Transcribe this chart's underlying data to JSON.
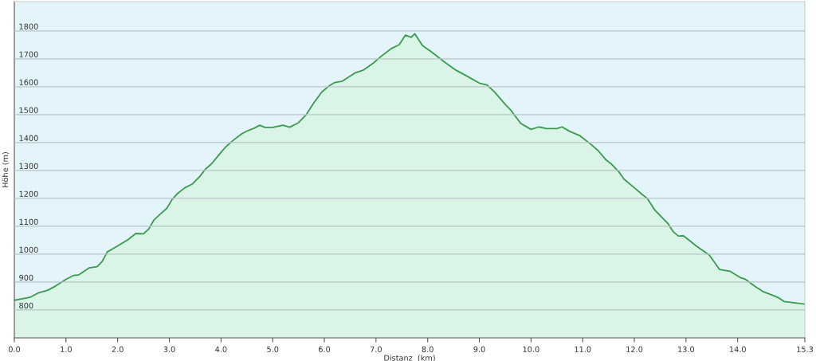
{
  "chart_data": {
    "type": "area",
    "xlabel": "Distanz  (km)",
    "ylabel": "Höhe (m)",
    "xlim": [
      0,
      15.3
    ],
    "ylim": [
      700,
      1905
    ],
    "xticks": [
      {
        "value": 0,
        "label": "0.0"
      },
      {
        "value": 1,
        "label": "1.0"
      },
      {
        "value": 2,
        "label": "2.0"
      },
      {
        "value": 3,
        "label": "3.0"
      },
      {
        "value": 4,
        "label": "4.0"
      },
      {
        "value": 5,
        "label": "5.0"
      },
      {
        "value": 6,
        "label": "6.0"
      },
      {
        "value": 7,
        "label": "7.0"
      },
      {
        "value": 8,
        "label": "8.0"
      },
      {
        "value": 9,
        "label": "9.0"
      },
      {
        "value": 10,
        "label": "10.0"
      },
      {
        "value": 11,
        "label": "11.0"
      },
      {
        "value": 12,
        "label": "12.0"
      },
      {
        "value": 13,
        "label": "13.0"
      },
      {
        "value": 14,
        "label": "14.0"
      },
      {
        "value": 15.3,
        "label": "15.3"
      }
    ],
    "yticks": [
      800,
      900,
      1000,
      1100,
      1200,
      1300,
      1400,
      1500,
      1600,
      1700,
      1800
    ],
    "grid": "y",
    "series": [
      {
        "color": "#3a9a4e",
        "x": [
          0,
          0.3,
          0.45,
          0.65,
          0.8,
          1.0,
          1.15,
          1.25,
          1.45,
          1.6,
          1.7,
          1.8,
          1.95,
          2.2,
          2.35,
          2.5,
          2.6,
          2.7,
          2.85,
          2.95,
          3.05,
          3.15,
          3.3,
          3.45,
          3.6,
          3.7,
          3.8,
          3.85,
          4.0,
          4.1,
          4.25,
          4.4,
          4.5,
          4.65,
          4.75,
          4.85,
          5.0,
          5.2,
          5.33,
          5.5,
          5.65,
          5.8,
          5.95,
          6.1,
          6.2,
          6.35,
          6.6,
          6.75,
          6.95,
          7.1,
          7.3,
          7.45,
          7.57,
          7.68,
          7.75,
          7.9,
          8.05,
          8.35,
          8.55,
          8.75,
          9.0,
          9.15,
          9.3,
          9.5,
          9.6,
          9.8,
          10.0,
          10.15,
          10.3,
          10.5,
          10.6,
          10.75,
          10.95,
          11.15,
          11.3,
          11.45,
          11.55,
          11.7,
          11.8,
          12.0,
          12.15,
          12.25,
          12.4,
          12.55,
          12.65,
          12.75,
          12.85,
          12.95,
          13.2,
          13.45,
          13.55,
          13.65,
          13.85,
          14.05,
          14.15,
          14.35,
          14.5,
          14.7,
          14.8,
          14.9,
          15.3
        ],
        "values": [
          835,
          845,
          860,
          871,
          886,
          910,
          924,
          926,
          951,
          955,
          974,
          1008,
          1024,
          1052,
          1074,
          1073,
          1090,
          1122,
          1148,
          1164,
          1195,
          1216,
          1238,
          1252,
          1281,
          1305,
          1321,
          1331,
          1365,
          1386,
          1410,
          1431,
          1441,
          1452,
          1462,
          1454,
          1454,
          1462,
          1455,
          1471,
          1500,
          1543,
          1581,
          1604,
          1615,
          1620,
          1650,
          1659,
          1685,
          1709,
          1737,
          1751,
          1785,
          1777,
          1790,
          1747,
          1728,
          1685,
          1659,
          1639,
          1613,
          1606,
          1580,
          1537,
          1518,
          1469,
          1447,
          1456,
          1450,
          1450,
          1456,
          1440,
          1424,
          1395,
          1371,
          1338,
          1324,
          1295,
          1269,
          1238,
          1214,
          1200,
          1157,
          1129,
          1110,
          1081,
          1065,
          1066,
          1029,
          997,
          971,
          945,
          939,
          916,
          910,
          883,
          865,
          851,
          843,
          830,
          821
        ]
      }
    ]
  }
}
